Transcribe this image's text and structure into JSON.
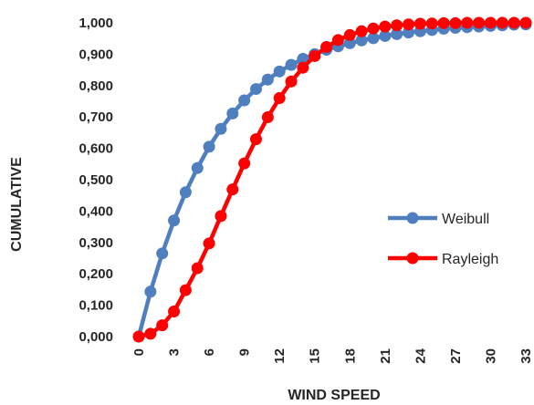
{
  "chart_data": {
    "type": "line",
    "xlabel": "WIND SPEED",
    "ylabel": "CUMULATIVE",
    "xlim": [
      0,
      33
    ],
    "ylim": [
      0,
      1
    ],
    "x_ticks": [
      "0",
      "3",
      "6",
      "9",
      "12",
      "15",
      "18",
      "21",
      "24",
      "27",
      "30",
      "33"
    ],
    "y_ticks": [
      "0,000",
      "0,100",
      "0,200",
      "0,300",
      "0,400",
      "0,500",
      "0,600",
      "0,700",
      "0,800",
      "0,900",
      "1,000"
    ],
    "grid": false,
    "legend_position": "right",
    "x": [
      0,
      1,
      2,
      3,
      4,
      5,
      6,
      7,
      8,
      9,
      10,
      11,
      12,
      13,
      14,
      15,
      16,
      17,
      18,
      19,
      20,
      21,
      22,
      23,
      24,
      25,
      26,
      27,
      28,
      29,
      30,
      31,
      32,
      33
    ],
    "series": [
      {
        "name": "Weibull",
        "color": "#4f7fbf",
        "values": [
          0.0,
          0.143,
          0.265,
          0.37,
          0.46,
          0.537,
          0.605,
          0.662,
          0.711,
          0.753,
          0.789,
          0.819,
          0.845,
          0.866,
          0.885,
          0.9,
          0.914,
          0.925,
          0.935,
          0.944,
          0.951,
          0.958,
          0.964,
          0.969,
          0.973,
          0.977,
          0.981,
          0.984,
          0.986,
          0.988,
          0.99,
          0.992,
          0.994,
          0.995
        ]
      },
      {
        "name": "Rayleigh",
        "color": "#ff0000",
        "values": [
          0.0,
          0.009,
          0.036,
          0.08,
          0.148,
          0.218,
          0.297,
          0.384,
          0.469,
          0.552,
          0.629,
          0.699,
          0.76,
          0.813,
          0.857,
          0.894,
          0.923,
          0.945,
          0.961,
          0.973,
          0.982,
          0.988,
          0.992,
          0.995,
          0.997,
          0.998,
          0.999,
          0.999,
          1.0,
          1.0,
          1.0,
          1.0,
          1.0,
          1.0
        ]
      }
    ]
  }
}
